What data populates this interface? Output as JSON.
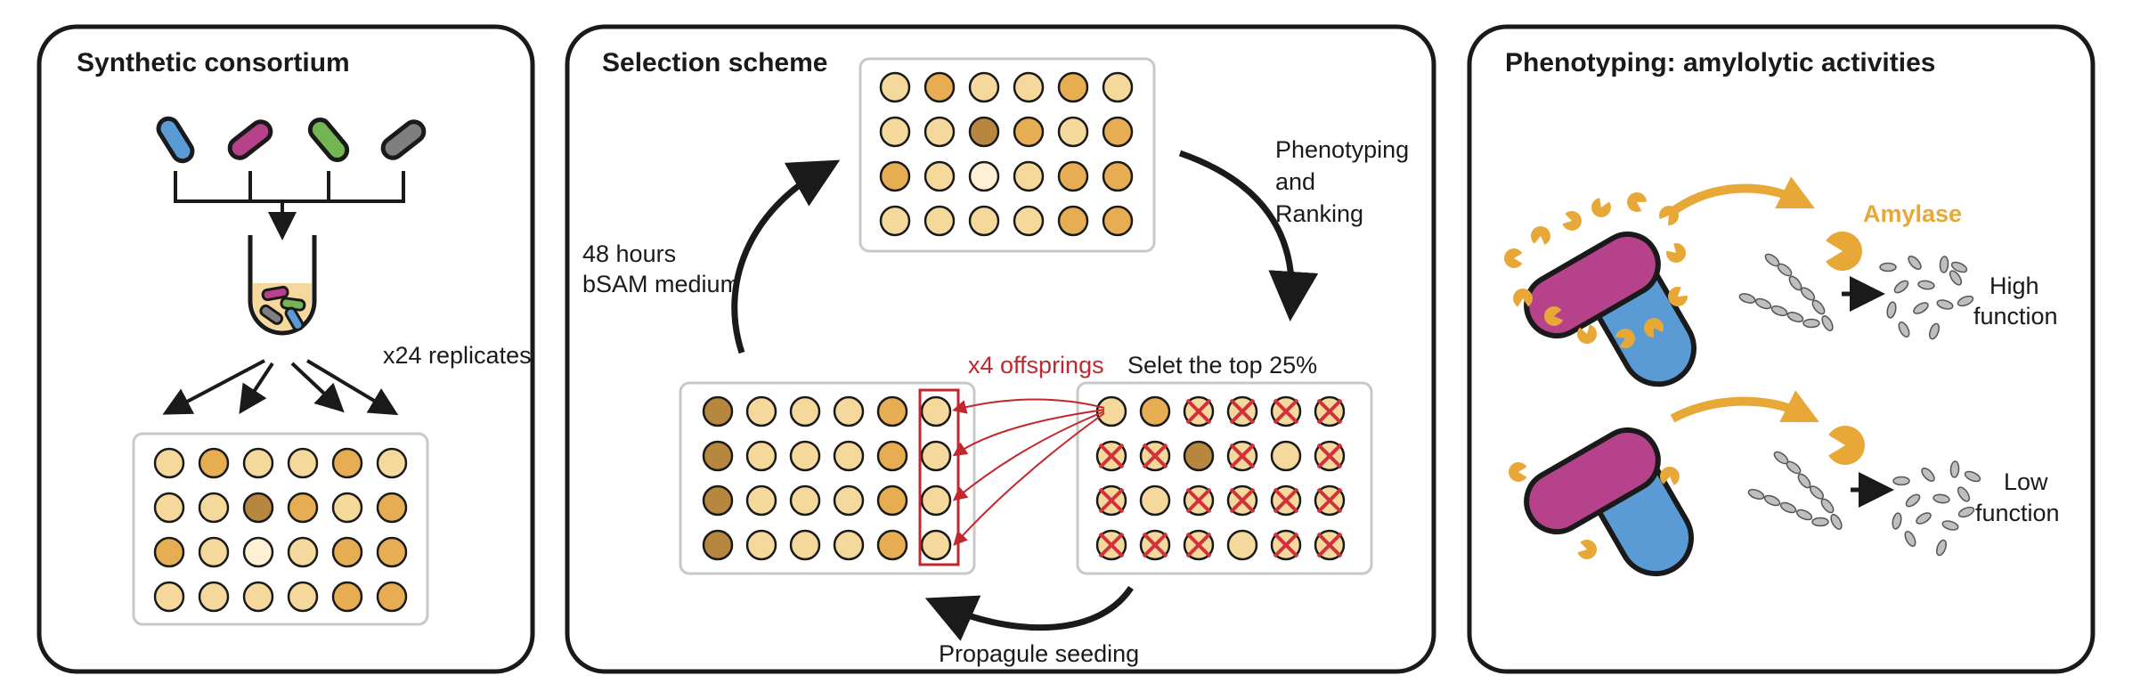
{
  "panels": {
    "consortium": {
      "title": "Synthetic consortium",
      "replicates_label": "x24 replicates",
      "strain_colors": [
        "#5b9bd5",
        "#b5428a",
        "#72b552",
        "#7f7f7f"
      ]
    },
    "selection": {
      "title": "Selection scheme",
      "step_phenotyping": [
        "Phenotyping",
        "and",
        "Ranking"
      ],
      "step_incubation": [
        "48 hours",
        "bSAM medium"
      ],
      "step_select": "Selet the top 25%",
      "step_offspring": "x4 offsprings",
      "step_seeding": "Propagule seeding"
    },
    "phenotyping": {
      "title": "Phenotyping: amylolytic activities",
      "enzyme_label": "Amylase",
      "high_label": [
        "High",
        "function"
      ],
      "low_label": [
        "Low",
        "function"
      ]
    }
  },
  "well_colors": {
    "light": "#f5d89c",
    "mid": "#e7ad52",
    "dark": "#b8873f",
    "pale": "#fdf0d4"
  },
  "plates": {
    "initial": [
      [
        "light",
        "mid",
        "light",
        "light",
        "mid",
        "light"
      ],
      [
        "light",
        "light",
        "dark",
        "mid",
        "light",
        "mid"
      ],
      [
        "mid",
        "light",
        "pale",
        "light",
        "mid",
        "mid"
      ],
      [
        "light",
        "light",
        "light",
        "light",
        "mid",
        "mid"
      ]
    ],
    "top": [
      [
        "light",
        "mid",
        "light",
        "light",
        "mid",
        "light"
      ],
      [
        "light",
        "light",
        "dark",
        "mid",
        "light",
        "mid"
      ],
      [
        "mid",
        "light",
        "pale",
        "light",
        "mid",
        "mid"
      ],
      [
        "light",
        "light",
        "light",
        "light",
        "mid",
        "mid"
      ]
    ],
    "ranked": [
      [
        "light",
        "mid",
        "light",
        "light",
        "light",
        "light"
      ],
      [
        "light",
        "light",
        "dark",
        "light",
        "light",
        "light"
      ],
      [
        "light",
        "light",
        "light",
        "light",
        "light",
        "light"
      ],
      [
        "light",
        "light",
        "light",
        "light",
        "light",
        "light"
      ]
    ],
    "ranked_crossed": [
      [
        false,
        false,
        true,
        true,
        true,
        true
      ],
      [
        true,
        true,
        false,
        true,
        false,
        true
      ],
      [
        true,
        false,
        true,
        true,
        true,
        true
      ],
      [
        true,
        true,
        true,
        false,
        true,
        true
      ]
    ],
    "seeded": [
      [
        "dark",
        "light",
        "light",
        "light",
        "mid",
        "light"
      ],
      [
        "dark",
        "light",
        "light",
        "light",
        "mid",
        "light"
      ],
      [
        "dark",
        "light",
        "light",
        "light",
        "mid",
        "light"
      ],
      [
        "dark",
        "light",
        "light",
        "light",
        "mid",
        "light"
      ]
    ]
  }
}
